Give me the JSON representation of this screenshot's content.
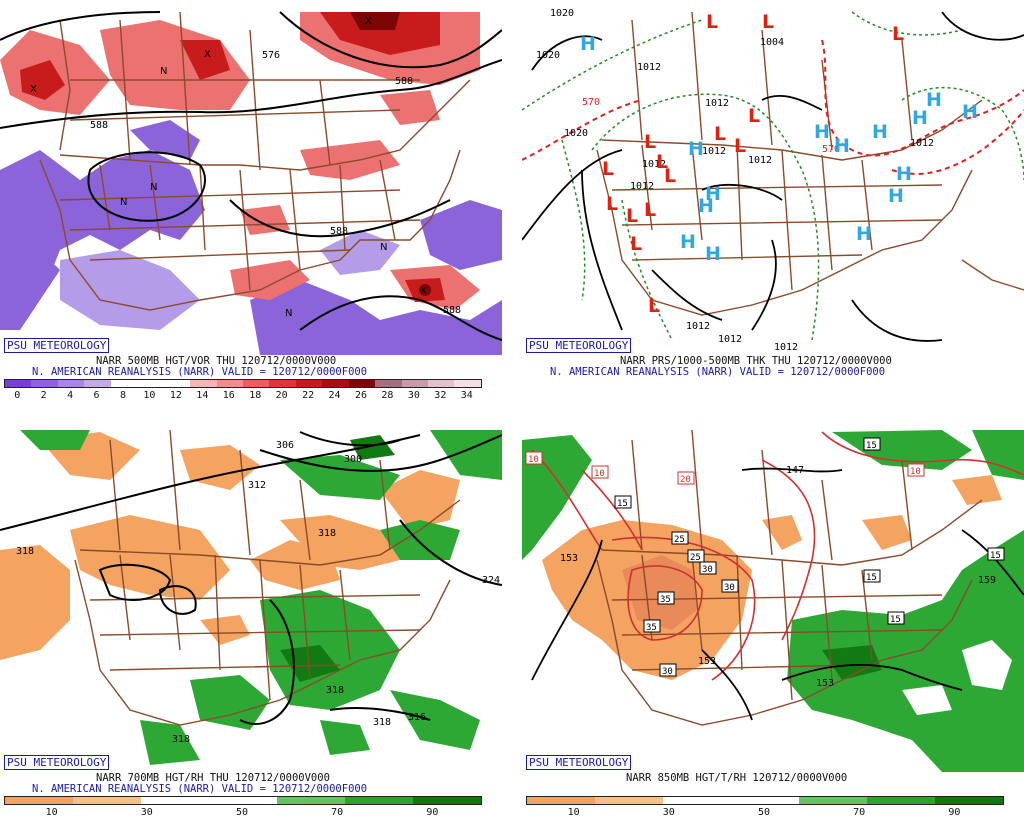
{
  "panel_tl": {
    "badge": "PSU METEOROLOGY",
    "caption1": "NARR 500MB HGT/VOR THU 120712/0000V000",
    "caption2": "N. AMERICAN REANALYSIS (NARR) VALID = 120712/0000F000",
    "scale_ticks": [
      "0",
      "2",
      "4",
      "6",
      "8",
      "10",
      "12",
      "14",
      "16",
      "18",
      "20",
      "22",
      "24",
      "26",
      "28",
      "30",
      "32",
      "34"
    ],
    "scale_colors": [
      "#7a3fd0",
      "#9261dc",
      "#aa84e6",
      "#c3a8ee",
      "#ffffff",
      "#ffffff",
      "#ffffff",
      "#f7b4b4",
      "#f28c8c",
      "#ea5e5e",
      "#de3636",
      "#c81c1c",
      "#a80f0f",
      "#7c0606",
      "#a47080",
      "#c89aac",
      "#e2c2cc",
      "#f5dde4"
    ],
    "contour_labels": [
      "588",
      "576",
      "588",
      "588",
      "588"
    ],
    "vort_marks": [
      "X",
      "N"
    ]
  },
  "panel_tr": {
    "badge": "PSU METEOROLOGY",
    "caption1": "NARR PRS/1000-500MB THK THU 120712/0000V000",
    "caption2": "N. AMERICAN REANALYSIS (NARR) VALID = 120712/0000F000",
    "pressure_labels": [
      "1020",
      "1020",
      "1004",
      "1012",
      "1012",
      "1012",
      "1012",
      "1020",
      "1012",
      "1012",
      "1012",
      "1012",
      "1012",
      "1012"
    ],
    "thk_labels": [
      "570",
      "570"
    ],
    "H_letter": "H",
    "L_letter": "L"
  },
  "panel_bl": {
    "badge": "PSU METEOROLOGY",
    "caption1": "NARR 700MB HGT/RH THU 120712/0000V000",
    "caption2": "N. AMERICAN REANALYSIS (NARR) VALID = 120712/0000F000",
    "scale_ticks": [
      "10",
      "30",
      "50",
      "70",
      "90"
    ],
    "scale_colors": [
      "#f4a460",
      "#f6c08a",
      "#ffffff",
      "#ffffff",
      "#62c462",
      "#2aa52a",
      "#117711"
    ],
    "contour_labels": [
      "306",
      "300",
      "312",
      "318",
      "318",
      "318",
      "318",
      "316",
      "324",
      "318"
    ]
  },
  "panel_br": {
    "badge": "PSU METEOROLOGY",
    "caption1": "NARR 850MB HGT/T/RH 120712/0000V000",
    "scale_ticks": [
      "10",
      "30",
      "50",
      "70",
      "90"
    ],
    "scale_colors": [
      "#f4a460",
      "#f6c08a",
      "#ffffff",
      "#ffffff",
      "#62c462",
      "#2aa52a",
      "#117711"
    ],
    "hgt_labels": [
      "153",
      "147",
      "153",
      "153",
      "159"
    ],
    "temp_boxes": [
      "10",
      "20",
      "15",
      "25",
      "25",
      "30",
      "30",
      "35",
      "35",
      "30",
      "15",
      "15",
      "15",
      "15",
      "10"
    ]
  },
  "colors": {
    "border": "#8b4a2b",
    "hgt": "#000000",
    "high": "#2ea8e0",
    "low": "#e02010",
    "thk_green": "#1f8f1f",
    "thk_red": "#e02020",
    "purple": "#8460d6",
    "green": "#3cb43c",
    "orange": "#f4a460",
    "temp_red": "#d23030"
  }
}
